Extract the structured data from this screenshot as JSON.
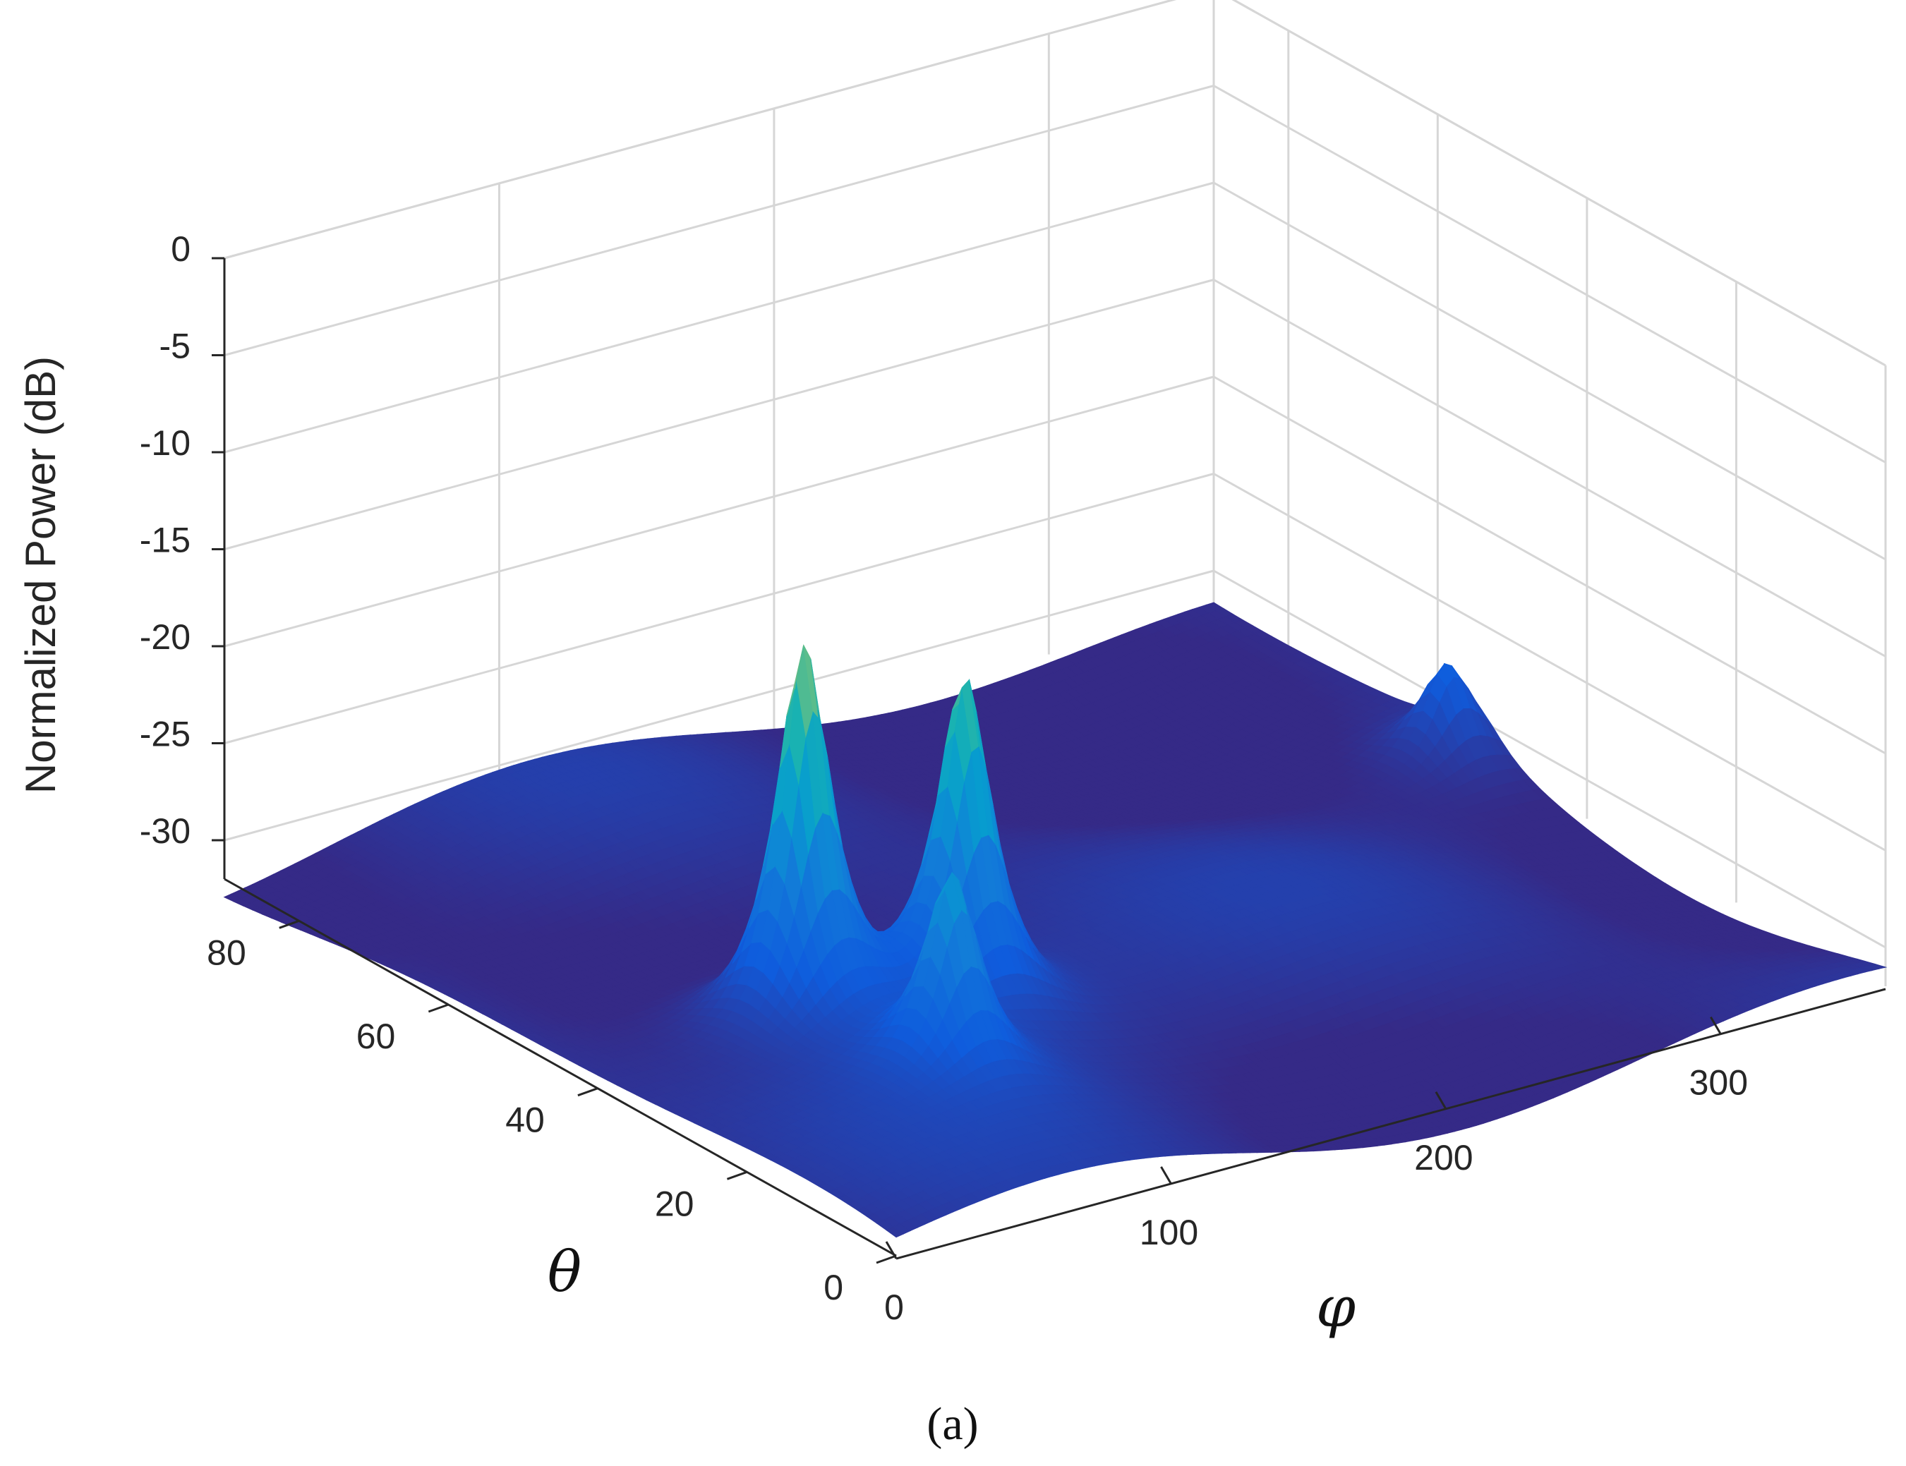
{
  "chart_data": {
    "type": "surface",
    "zlabel": "Normalized Power (dB)",
    "xlabel": "φ",
    "ylabel": "θ",
    "caption": "(a)",
    "x_range": [
      0,
      360
    ],
    "y_range": [
      0,
      90
    ],
    "z_range": [
      -32,
      0
    ],
    "x_ticks": [
      "0",
      "100",
      "200",
      "300"
    ],
    "x_tick_values": [
      0,
      100,
      200,
      300
    ],
    "y_ticks": [
      "0",
      "20",
      "40",
      "60",
      "80"
    ],
    "y_tick_values": [
      0,
      20,
      40,
      60,
      80
    ],
    "z_ticks": [
      "0",
      "-5",
      "-10",
      "-15",
      "-20",
      "-25",
      "-30"
    ],
    "z_tick_values": [
      0,
      -5,
      -10,
      -15,
      -20,
      -25,
      -30
    ],
    "grid": true,
    "colormap": "parula",
    "floor_db": -32,
    "peaks": [
      {
        "phi": 75,
        "theta": 40,
        "db": -10.5
      },
      {
        "phi": 80,
        "theta": 22,
        "db": -21
      },
      {
        "phi": 120,
        "theta": 35,
        "db": -13.5
      },
      {
        "phi": 350,
        "theta": 55,
        "db": -26.5
      }
    ],
    "colors": {
      "surface_low": "#352a87",
      "surface_mid": "#20b2aa",
      "surface_high": "#f9fb0e",
      "grid": "#d6d6d6",
      "axis": "#262626"
    }
  }
}
